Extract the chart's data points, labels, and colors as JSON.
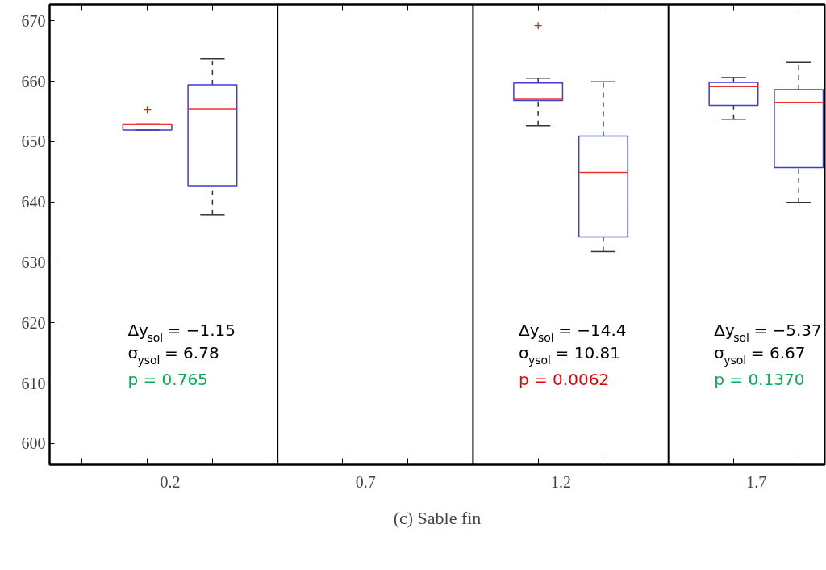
{
  "chart_data": {
    "type": "box",
    "categories": [
      "0.2",
      "0.7",
      "1.2",
      "1.7"
    ],
    "series": [
      {
        "color": "#3c3cd6",
        "boxes": [
          {
            "low": 651.9,
            "q1": 651.9,
            "median": 652.8,
            "q3": 652.9,
            "high": 652.9,
            "outliers": [
              655.3
            ]
          },
          null,
          {
            "low": 652.6,
            "q1": 656.8,
            "median": 657.0,
            "q3": 659.7,
            "high": 660.5,
            "outliers": [
              669.2
            ]
          },
          {
            "low": 653.7,
            "q1": 656.0,
            "median": 659.1,
            "q3": 659.8,
            "high": 660.6
          }
        ]
      },
      {
        "color": "#3c3cd6",
        "boxes": [
          {
            "low": 637.9,
            "q1": 642.7,
            "median": 655.4,
            "q3": 659.4,
            "high": 663.7
          },
          null,
          {
            "low": 631.8,
            "q1": 634.2,
            "median": 644.9,
            "q3": 650.9,
            "high": 659.9
          },
          {
            "low": 639.9,
            "q1": 645.7,
            "median": 656.5,
            "q3": 658.6,
            "high": 663.1
          }
        ]
      }
    ],
    "ylim": [
      596.5,
      672.7
    ],
    "yticks": [
      600,
      610,
      620,
      630,
      640,
      650,
      660,
      670
    ],
    "grid": false,
    "annotations": [
      "Δy$_{sol}$ = −1.15",
      "σ$_{ysol}$ = 6.78",
      "p = 0.765",
      "Δy$_{sol}$ = −14.4",
      "σ$_{ysol}$ = 10.81",
      "p = 0.0062",
      "Δy$_{sol}$ = −5.37",
      "σ$_{ysol}$ = 6.67",
      "p = 0.1370",
      "(c) Sable fin"
    ]
  }
}
